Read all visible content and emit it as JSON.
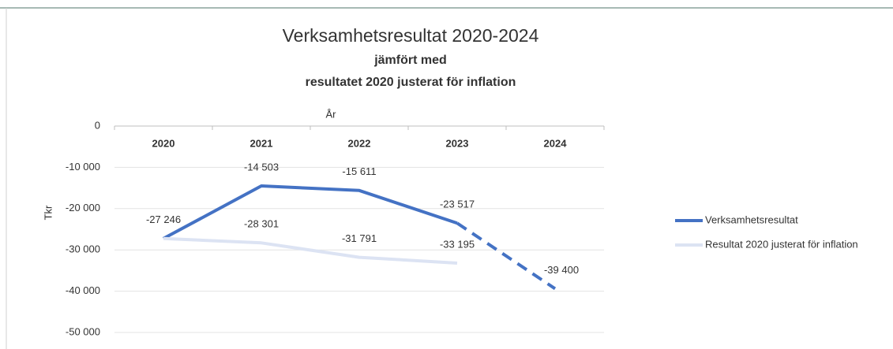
{
  "chart_data": {
    "type": "line",
    "title": "Verksamhetsresultat 2020-2024",
    "subtitle": [
      "jämfört med",
      "resultatet 2020 justerat för inflation"
    ],
    "x_label": "År",
    "y_label": "Tkr",
    "categories": [
      "2020",
      "2021",
      "2022",
      "2023",
      "2024"
    ],
    "series": [
      {
        "name": "Verksamhetsresultat",
        "color": "#4472c4",
        "values": [
          -27246,
          -14503,
          -15611,
          -23517,
          -39400
        ],
        "value_labels": [
          "-27 246",
          "-14 503",
          "-15 611",
          "-23 517",
          "-39 400"
        ],
        "dash_from_index": 3
      },
      {
        "name": "Resultat 2020 justerat för inflation",
        "color": "#dce3f3",
        "values": [
          -27246,
          -28301,
          -31791,
          -33195,
          null
        ],
        "value_labels": [
          null,
          "-28 301",
          "-31 791",
          "-33 195",
          null
        ]
      }
    ],
    "ylim": [
      -50000,
      0
    ],
    "yticks": [
      0,
      {
        "value": -10000,
        "label": "-10 000"
      },
      {
        "value": -20000,
        "label": "-20 000"
      },
      {
        "value": -30000,
        "label": "-30 000"
      },
      {
        "value": -40000,
        "label": "-40 000"
      },
      {
        "value": -50000,
        "label": "-50 000"
      }
    ],
    "grid": true,
    "legend": "right"
  }
}
